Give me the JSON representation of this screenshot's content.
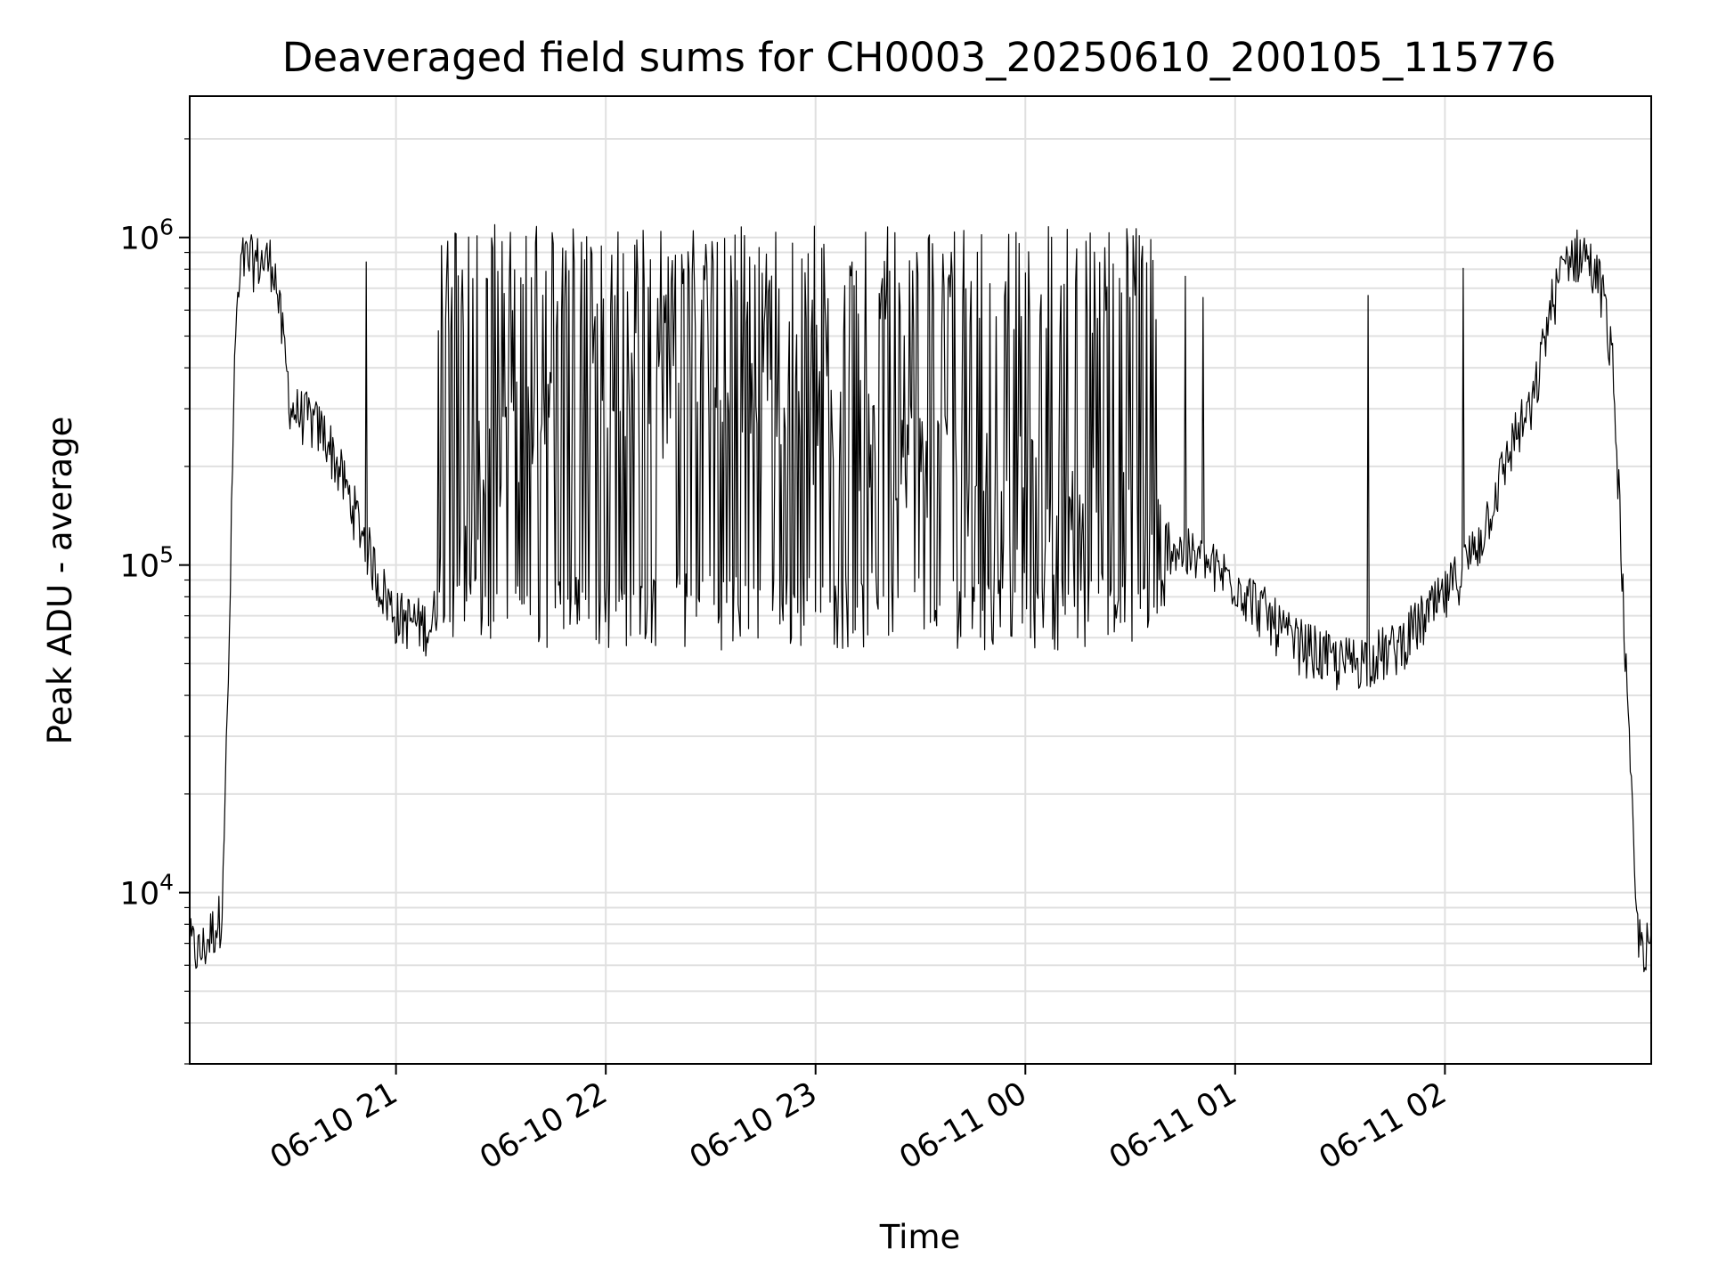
{
  "chart_data": {
    "type": "line",
    "title": "Deaveraged field sums for CH0003_20250610_200105_115776",
    "xlabel": "Time",
    "ylabel": "Peak ADU - average",
    "y_scale": "log",
    "ylim": [
      3000,
      2700000
    ],
    "xlim": [
      "2025-06-10 20:01",
      "2025-06-11 02:59"
    ],
    "x_ticks": [
      "06-10 21",
      "06-10 22",
      "06-10 23",
      "06-11 00",
      "06-11 01",
      "06-11 02"
    ],
    "y_ticks": [
      {
        "base": "10",
        "exp": "4",
        "value": 10000
      },
      {
        "base": "10",
        "exp": "5",
        "value": 100000
      },
      {
        "base": "10",
        "exp": "6",
        "value": 1000000
      }
    ],
    "grid": true,
    "line_color": "#000000",
    "series": [
      {
        "x": [
          "2025-06-10 20:01",
          "2025-06-10 20:04",
          "2025-06-10 20:07",
          "2025-06-10 20:10",
          "2025-06-10 20:12",
          "2025-06-10 20:14",
          "2025-06-10 20:16",
          "2025-06-10 20:20",
          "2025-06-10 20:25",
          "2025-06-10 20:30",
          "2025-06-10 20:35",
          "2025-06-10 20:40",
          "2025-06-10 20:45",
          "2025-06-10 20:50",
          "2025-06-10 20:55",
          "2025-06-10 21:00",
          "2025-06-10 21:10",
          "2025-06-10 21:20",
          "2025-06-10 21:30",
          "2025-06-10 21:40",
          "2025-06-10 22:00",
          "2025-06-10 22:15",
          "2025-06-10 22:30",
          "2025-06-10 22:45",
          "2025-06-10 23:00",
          "2025-06-10 23:15",
          "2025-06-10 23:30",
          "2025-06-10 23:45",
          "2025-06-11 00:00",
          "2025-06-11 00:15",
          "2025-06-11 00:30",
          "2025-06-11 00:45",
          "2025-06-11 01:00",
          "2025-06-11 01:15",
          "2025-06-11 01:30",
          "2025-06-11 01:45",
          "2025-06-11 02:00",
          "2025-06-11 02:10",
          "2025-06-11 02:20",
          "2025-06-11 02:25",
          "2025-06-11 02:30",
          "2025-06-11 02:35",
          "2025-06-11 02:40",
          "2025-06-11 02:45",
          "2025-06-11 02:48",
          "2025-06-11 02:50",
          "2025-06-11 02:52",
          "2025-06-11 02:55",
          "2025-06-11 02:59"
        ],
        "values": [
          7000,
          6500,
          7500,
          8500,
          40000,
          500000,
          850000,
          850000,
          850000,
          300000,
          280000,
          250000,
          180000,
          130000,
          90000,
          70000,
          65000,
          170000,
          250000,
          300000,
          320000,
          330000,
          320000,
          300000,
          290000,
          260000,
          230000,
          200000,
          180000,
          150000,
          140000,
          110000,
          90000,
          60000,
          50000,
          55000,
          80000,
          120000,
          250000,
          300000,
          600000,
          880000,
          900000,
          700000,
          400000,
          150000,
          40000,
          7500,
          6500
        ]
      }
    ]
  }
}
